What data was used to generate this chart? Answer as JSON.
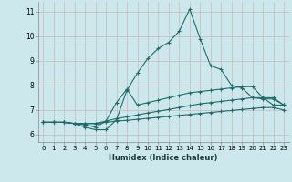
{
  "xlabel": "Humidex (Indice chaleur)",
  "ylabel": "",
  "background_color": "#cde8ec",
  "line_color": "#1e6b6b",
  "xlim": [
    -0.5,
    23.5
  ],
  "ylim": [
    5.7,
    11.4
  ],
  "xticks": [
    0,
    1,
    2,
    3,
    4,
    5,
    6,
    7,
    8,
    9,
    10,
    11,
    12,
    13,
    14,
    15,
    16,
    17,
    18,
    19,
    20,
    21,
    22,
    23
  ],
  "yticks": [
    6,
    7,
    8,
    9,
    10,
    11
  ],
  "lines": [
    [
      6.5,
      6.5,
      6.5,
      6.45,
      6.3,
      6.2,
      6.2,
      6.6,
      7.8,
      8.5,
      9.1,
      9.5,
      9.75,
      10.2,
      11.1,
      9.9,
      8.8,
      8.65,
      8.0,
      7.9,
      7.5,
      7.5,
      7.2,
      7.2
    ],
    [
      6.5,
      6.5,
      6.5,
      6.45,
      6.4,
      6.3,
      6.55,
      7.3,
      7.85,
      7.2,
      7.3,
      7.4,
      7.5,
      7.6,
      7.7,
      7.75,
      7.8,
      7.85,
      7.9,
      7.95,
      7.95,
      7.5,
      7.5,
      7.2
    ],
    [
      6.5,
      6.5,
      6.5,
      6.45,
      6.45,
      6.45,
      6.55,
      6.65,
      6.72,
      6.8,
      6.88,
      6.95,
      7.02,
      7.1,
      7.18,
      7.25,
      7.3,
      7.35,
      7.4,
      7.45,
      7.5,
      7.45,
      7.45,
      7.2
    ],
    [
      6.5,
      6.5,
      6.5,
      6.45,
      6.45,
      6.45,
      6.5,
      6.55,
      6.58,
      6.62,
      6.66,
      6.7,
      6.74,
      6.78,
      6.82,
      6.86,
      6.9,
      6.94,
      6.98,
      7.02,
      7.06,
      7.1,
      7.1,
      7.0
    ]
  ]
}
